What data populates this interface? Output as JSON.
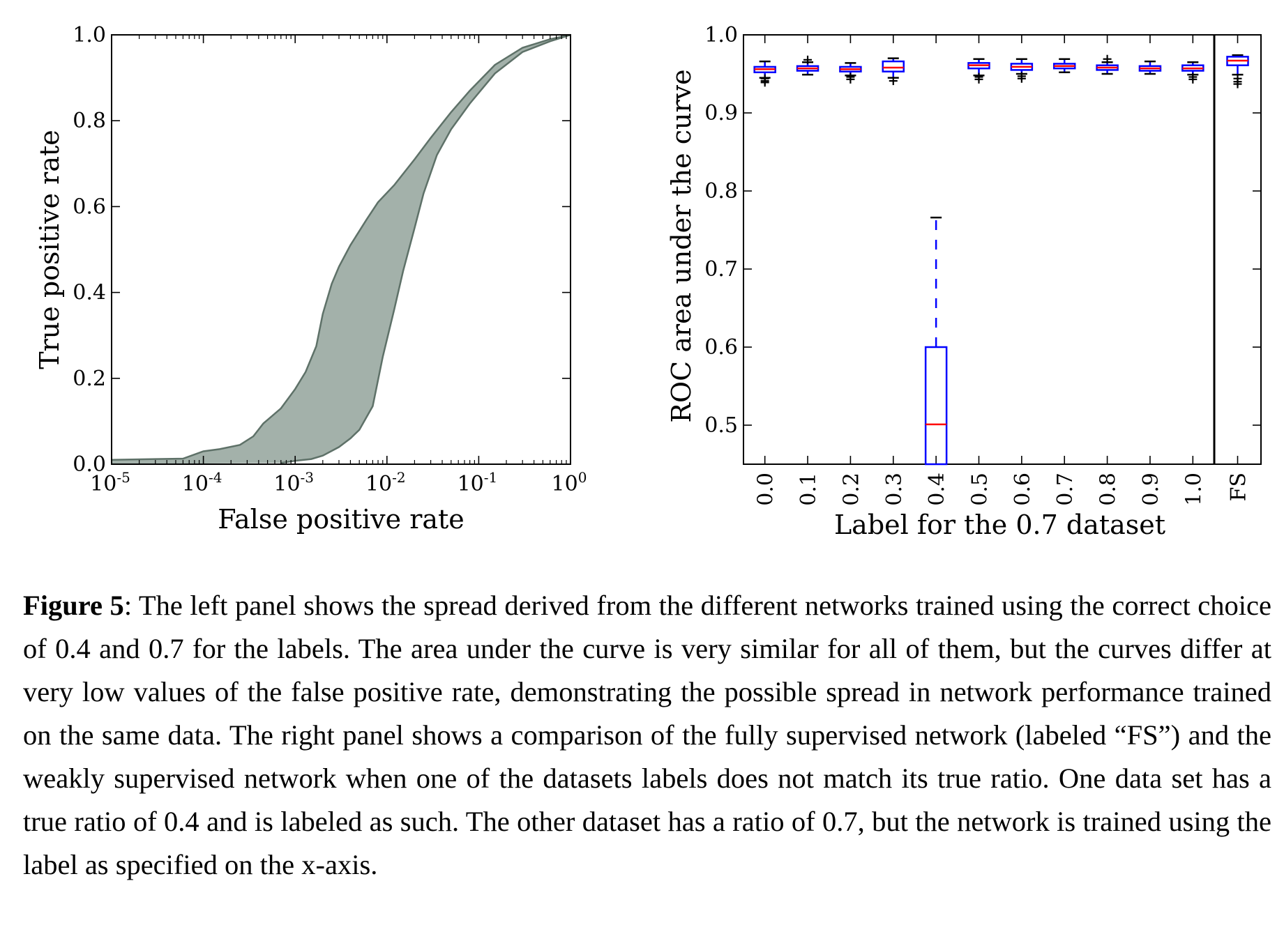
{
  "figure": {
    "caption_label": "Figure 5",
    "caption_text": ": The left panel shows the spread derived from the different networks trained using the correct choice of 0.4 and 0.7 for the labels. The area under the curve is very similar for all of them, but the curves differ at very low values of the false positive rate, demonstrating the possible spread in network performance trained on the same data. The right panel shows a comparison of the fully supervised network (labeled “FS”) and the weakly supervised network when one of the datasets labels does not match its true ratio. One data set has a true ratio of 0.4 and is labeled as such. The other dataset has a ratio of 0.7, but the network is trained using the label as specified on the x-axis."
  },
  "chart_data": [
    {
      "type": "area",
      "xlabel": "False positive rate",
      "ylabel": "True positive rate",
      "xscale": "log",
      "xlim": [
        1e-05,
        1
      ],
      "ylim": [
        0.0,
        1.0
      ],
      "x_ticks": [
        {
          "base": "10",
          "exp": "-5"
        },
        {
          "base": "10",
          "exp": "-4"
        },
        {
          "base": "10",
          "exp": "-3"
        },
        {
          "base": "10",
          "exp": "-2"
        },
        {
          "base": "10",
          "exp": "-1"
        },
        {
          "base": "10",
          "exp": "0"
        }
      ],
      "y_ticks": [
        "0.0",
        "0.2",
        "0.4",
        "0.6",
        "0.8",
        "1.0"
      ],
      "y_tick_values": [
        0.0,
        0.2,
        0.4,
        0.6,
        0.8,
        1.0
      ],
      "fill_color": "#a3b1aa",
      "edge_color": "#5e7168",
      "upper_curve": [
        [
          1e-05,
          0.01
        ],
        [
          3e-05,
          0.012
        ],
        [
          6e-05,
          0.013
        ],
        [
          0.0001,
          0.03
        ],
        [
          0.00015,
          0.035
        ],
        [
          0.00025,
          0.045
        ],
        [
          0.00035,
          0.065
        ],
        [
          0.00045,
          0.095
        ],
        [
          0.0007,
          0.13
        ],
        [
          0.001,
          0.175
        ],
        [
          0.0013,
          0.215
        ],
        [
          0.0017,
          0.275
        ],
        [
          0.002,
          0.35
        ],
        [
          0.0025,
          0.42
        ],
        [
          0.003,
          0.46
        ],
        [
          0.004,
          0.51
        ],
        [
          0.006,
          0.57
        ],
        [
          0.008,
          0.61
        ],
        [
          0.012,
          0.65
        ],
        [
          0.02,
          0.71
        ],
        [
          0.03,
          0.76
        ],
        [
          0.05,
          0.82
        ],
        [
          0.08,
          0.87
        ],
        [
          0.15,
          0.93
        ],
        [
          0.3,
          0.97
        ],
        [
          0.6,
          0.99
        ],
        [
          1.0,
          1.0
        ]
      ],
      "lower_curve": [
        [
          0.0007,
          0.003
        ],
        [
          0.001,
          0.008
        ],
        [
          0.0015,
          0.012
        ],
        [
          0.002,
          0.02
        ],
        [
          0.003,
          0.04
        ],
        [
          0.004,
          0.06
        ],
        [
          0.005,
          0.08
        ],
        [
          0.007,
          0.135
        ],
        [
          0.009,
          0.25
        ],
        [
          0.012,
          0.36
        ],
        [
          0.015,
          0.45
        ],
        [
          0.02,
          0.55
        ],
        [
          0.025,
          0.63
        ],
        [
          0.035,
          0.72
        ],
        [
          0.05,
          0.78
        ],
        [
          0.08,
          0.84
        ],
        [
          0.15,
          0.91
        ],
        [
          0.3,
          0.96
        ],
        [
          0.6,
          0.985
        ],
        [
          1.0,
          1.0
        ]
      ]
    },
    {
      "type": "box",
      "xlabel": "Label for the 0.7 dataset",
      "ylabel": "ROC area under the curve",
      "ylim": [
        0.45,
        1.0
      ],
      "y_ticks": [
        "0.5",
        "0.6",
        "0.7",
        "0.8",
        "0.9",
        "1.0"
      ],
      "y_tick_values": [
        0.5,
        0.6,
        0.7,
        0.8,
        0.9,
        1.0
      ],
      "box_color": "#0000ff",
      "median_color": "#ff0000",
      "categories": [
        "0.0",
        "0.1",
        "0.2",
        "0.3",
        "0.4",
        "0.5",
        "0.6",
        "0.7",
        "0.8",
        "0.9",
        "1.0"
      ],
      "boxes": [
        {
          "q1": 0.952,
          "median": 0.956,
          "q3": 0.959,
          "whislo": 0.945,
          "whishi": 0.966,
          "fliers": [
            0.944,
            0.941,
            0.939
          ]
        },
        {
          "q1": 0.954,
          "median": 0.957,
          "q3": 0.96,
          "whislo": 0.949,
          "whishi": 0.965,
          "fliers": [
            0.968
          ]
        },
        {
          "q1": 0.953,
          "median": 0.956,
          "q3": 0.959,
          "whislo": 0.948,
          "whishi": 0.964,
          "fliers": [
            0.946,
            0.943
          ]
        },
        {
          "q1": 0.953,
          "median": 0.958,
          "q3": 0.966,
          "whislo": 0.945,
          "whishi": 0.97,
          "fliers": [
            0.941
          ]
        },
        {
          "q1": 0.45,
          "median": 0.501,
          "q3": 0.6,
          "whislo": 0.45,
          "whishi": 0.766,
          "fliers": []
        },
        {
          "q1": 0.957,
          "median": 0.961,
          "q3": 0.964,
          "whislo": 0.948,
          "whishi": 0.969,
          "fliers": [
            0.946,
            0.943
          ]
        },
        {
          "q1": 0.955,
          "median": 0.959,
          "q3": 0.963,
          "whislo": 0.95,
          "whishi": 0.969,
          "fliers": [
            0.947,
            0.944
          ]
        },
        {
          "q1": 0.957,
          "median": 0.96,
          "q3": 0.963,
          "whislo": 0.952,
          "whishi": 0.969,
          "fliers": []
        },
        {
          "q1": 0.955,
          "median": 0.958,
          "q3": 0.961,
          "whislo": 0.95,
          "whishi": 0.965,
          "fliers": [
            0.969
          ]
        },
        {
          "q1": 0.954,
          "median": 0.957,
          "q3": 0.96,
          "whislo": 0.95,
          "whishi": 0.966,
          "fliers": []
        },
        {
          "q1": 0.954,
          "median": 0.957,
          "q3": 0.961,
          "whislo": 0.949,
          "whishi": 0.965,
          "fliers": [
            0.946,
            0.943
          ]
        }
      ],
      "separate_panel": {
        "category": "FS",
        "box": {
          "q1": 0.961,
          "median": 0.967,
          "q3": 0.972,
          "whislo": 0.949,
          "whishi": 0.974,
          "fliers": [
            0.944,
            0.94,
            0.937
          ]
        }
      }
    }
  ]
}
